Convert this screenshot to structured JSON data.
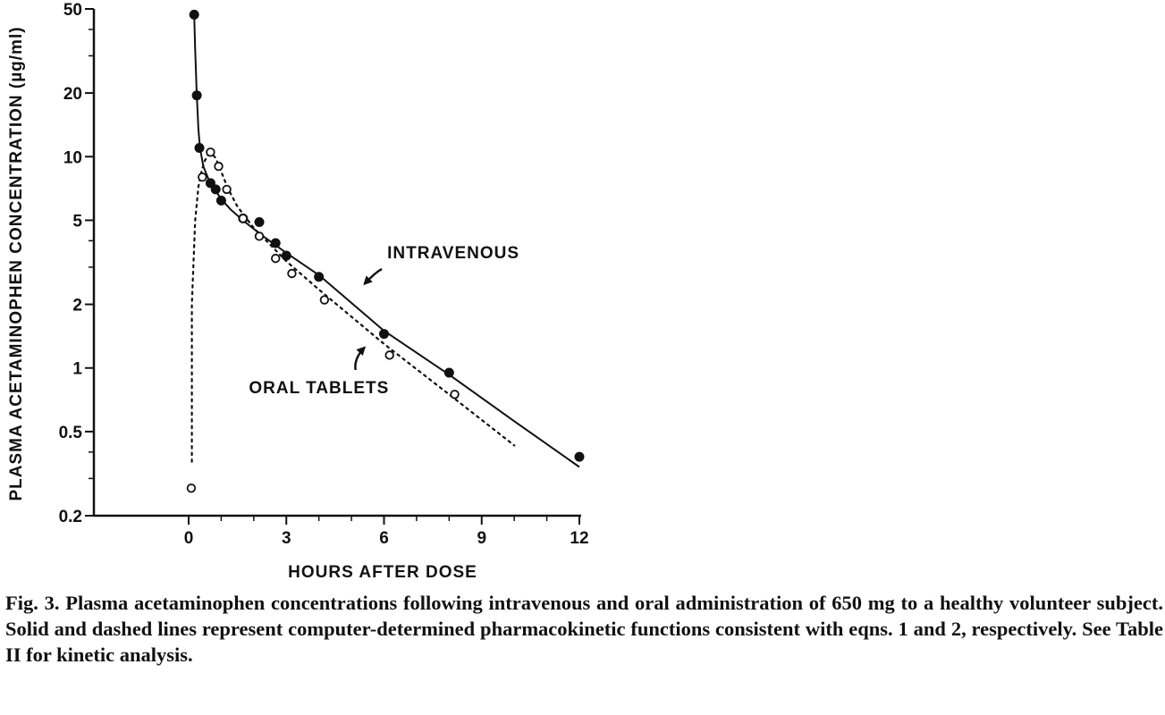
{
  "chart_data": {
    "type": "scatter",
    "title": "",
    "xlabel": "HOURS AFTER DOSE",
    "ylabel": "PLASMA ACETAMINOPHEN CONCENTRATION (µg/ml)",
    "xlim": [
      0,
      12
    ],
    "ylim": [
      0.2,
      50
    ],
    "yscale": "log",
    "xticks": [
      0,
      3,
      6,
      9,
      12
    ],
    "xtick_labels": [
      "0",
      "3",
      "6",
      "9",
      "12"
    ],
    "yticks": [
      0.2,
      0.5,
      1,
      2,
      5,
      10,
      20,
      50
    ],
    "ytick_labels": [
      "0.2",
      "0.5",
      "1",
      "2",
      "5",
      "10",
      "20",
      "50"
    ],
    "grid": false,
    "series": [
      {
        "name": "INTRAVENOUS",
        "marker": "filled-circle",
        "line": "solid",
        "x": [
          0.17,
          0.25,
          0.33,
          0.67,
          0.83,
          1.0,
          1.67,
          2.17,
          2.67,
          3.0,
          4.0,
          6.0,
          8.0,
          12.0
        ],
        "y": [
          47,
          19.5,
          11,
          7.5,
          7.0,
          6.2,
          5.1,
          4.9,
          3.9,
          3.4,
          2.7,
          1.45,
          0.95,
          0.38
        ]
      },
      {
        "name": "ORAL TABLETS",
        "marker": "open-circle",
        "line": "dashed",
        "x": [
          0.08,
          0.42,
          0.67,
          0.92,
          1.17,
          1.67,
          2.17,
          2.67,
          3.17,
          4.17,
          6.17,
          8.17
        ],
        "y": [
          0.27,
          8.0,
          10.5,
          9.0,
          7.0,
          5.1,
          4.2,
          3.3,
          2.8,
          2.1,
          1.15,
          0.75
        ]
      }
    ],
    "curves": [
      {
        "series": "INTRAVENOUS",
        "x": [
          0.17,
          0.2,
          0.25,
          0.3,
          0.35,
          0.45,
          0.6,
          0.8,
          1.0,
          1.3,
          1.7,
          2.2,
          3.0,
          4.0,
          6.0,
          8.0,
          10.0,
          12.0
        ],
        "y": [
          47,
          32,
          19.5,
          13.5,
          11.0,
          9.0,
          7.9,
          7.0,
          6.3,
          5.6,
          4.95,
          4.3,
          3.5,
          2.75,
          1.5,
          0.93,
          0.56,
          0.34
        ]
      },
      {
        "series": "ORAL TABLETS",
        "x": [
          0.1,
          0.1,
          0.2,
          0.3,
          0.4,
          0.5,
          0.6,
          0.7,
          0.8,
          0.9,
          1.0,
          1.2,
          1.5,
          2.0,
          3.0,
          4.0,
          6.0,
          8.0,
          10.0
        ],
        "y": [
          0.36,
          2.0,
          5.0,
          7.2,
          8.6,
          9.6,
          10.2,
          10.3,
          10.0,
          9.3,
          8.5,
          7.1,
          5.8,
          4.6,
          3.2,
          2.35,
          1.3,
          0.75,
          0.43
        ]
      }
    ],
    "annotations": [
      {
        "text": "INTRAVENOUS",
        "x": 6.1,
        "y": 3.3,
        "arrow_to": [
          5.4,
          2.5
        ]
      },
      {
        "text": "ORAL TABLETS",
        "x": 1.85,
        "y": 0.76,
        "arrow_to": [
          5.4,
          1.25
        ]
      }
    ]
  },
  "caption": "Fig. 3. Plasma acetaminophen concentrations following intravenous and oral administration of 650 mg to a healthy volunteer subject. Solid and dashed lines represent computer-determined pharmacokinetic functions consistent with eqns. 1 and 2, respectively. See Table II for kinetic analysis."
}
